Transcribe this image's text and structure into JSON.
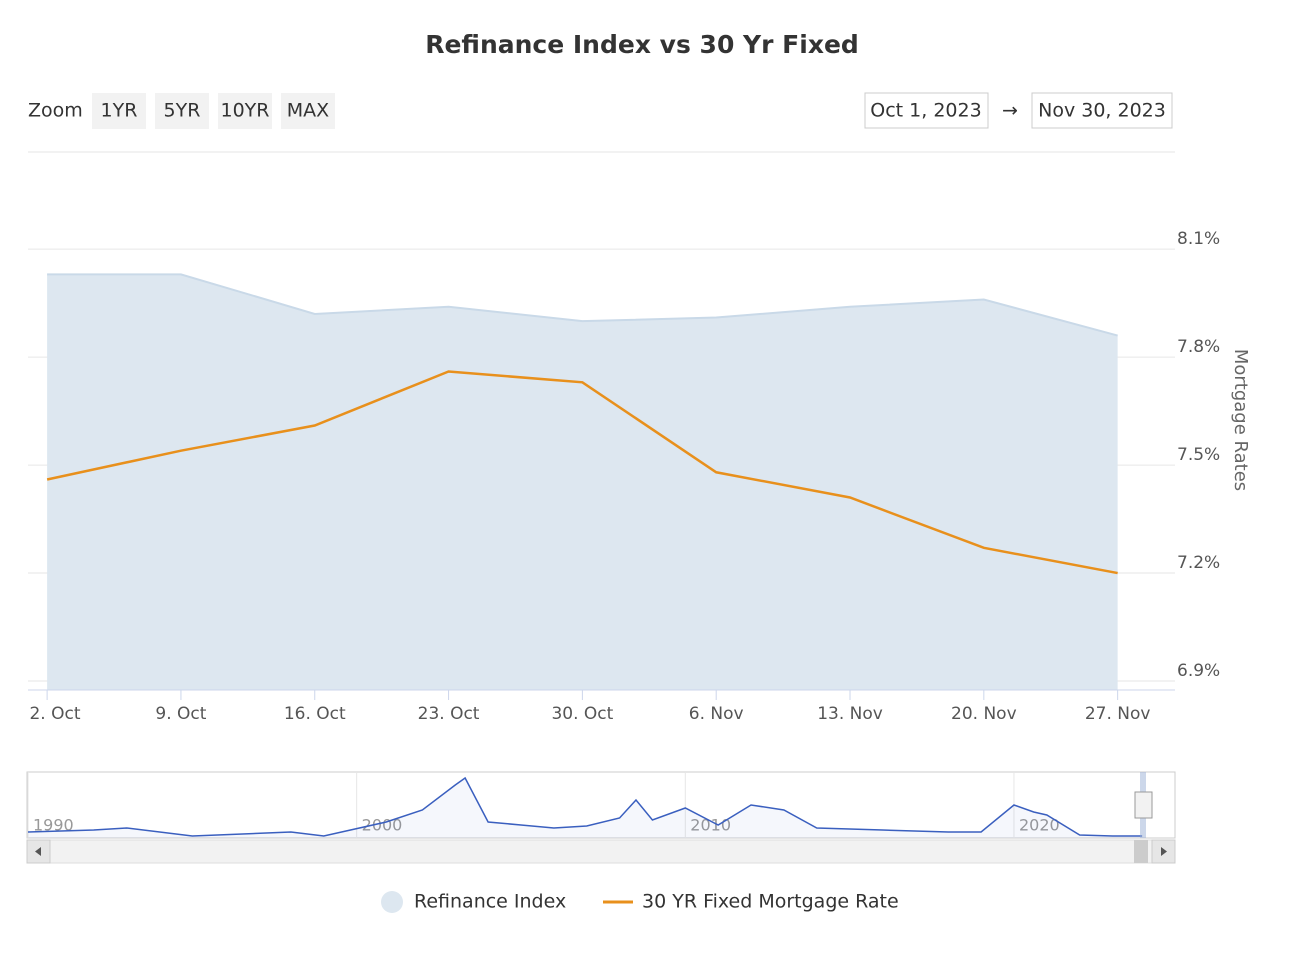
{
  "chart_data": {
    "type": "line",
    "title": "Refinance Index vs 30 Yr Fixed",
    "zoom_label": "Zoom",
    "zoom_buttons": [
      "1YR",
      "5YR",
      "10YR",
      "MAX"
    ],
    "date_from": "Oct 1, 2023",
    "date_arrow": "→",
    "date_to": "Nov 30, 2023",
    "y_axis_title": "Mortgage Rates",
    "x": [
      "2023-10-02",
      "2023-10-09",
      "2023-10-16",
      "2023-10-23",
      "2023-10-30",
      "2023-11-06",
      "2023-11-13",
      "2023-11-20",
      "2023-11-27"
    ],
    "xlim": [
      "2023-10-01",
      "2023-11-30"
    ],
    "xticks": [
      {
        "value": "2023-10-02",
        "label": "2. Oct"
      },
      {
        "value": "2023-10-09",
        "label": "9. Oct"
      },
      {
        "value": "2023-10-16",
        "label": "16. Oct"
      },
      {
        "value": "2023-10-23",
        "label": "23. Oct"
      },
      {
        "value": "2023-10-30",
        "label": "30. Oct"
      },
      {
        "value": "2023-11-06",
        "label": "6. Nov"
      },
      {
        "value": "2023-11-13",
        "label": "13. Nov"
      },
      {
        "value": "2023-11-20",
        "label": "20. Nov"
      },
      {
        "value": "2023-11-27",
        "label": "27. Nov"
      }
    ],
    "ylim": [
      6.875,
      8.37
    ],
    "yticks": [
      {
        "value": 6.9,
        "label": "6.9%"
      },
      {
        "value": 7.2,
        "label": "7.2%"
      },
      {
        "value": 7.5,
        "label": "7.5%"
      },
      {
        "value": 7.8,
        "label": "7.8%"
      },
      {
        "value": 8.1,
        "label": "8.1%"
      }
    ],
    "grid": true,
    "series": [
      {
        "name": "Refinance Index",
        "type": "area",
        "color": "#dde7f0",
        "line_color": "#c9d9e8",
        "values": [
          8.03,
          8.03,
          7.92,
          7.94,
          7.9,
          7.91,
          7.94,
          7.96,
          7.86
        ]
      },
      {
        "name": "30 YR Fixed Mortgage Rate",
        "type": "line",
        "color": "#e8901c",
        "values": [
          7.46,
          7.54,
          7.61,
          7.76,
          7.73,
          7.48,
          7.41,
          7.27,
          7.2
        ]
      }
    ],
    "legend": "bottom",
    "navigator": {
      "x": [
        1990,
        1992,
        1993,
        1995,
        1998,
        1999,
        2000.9,
        2002,
        2003,
        2003.3,
        2004,
        2005,
        2006,
        2007,
        2008,
        2008.5,
        2009,
        2010,
        2011,
        2012,
        2013,
        2014,
        2016,
        2018,
        2019,
        2020,
        2020.6,
        2021,
        2022,
        2023,
        2023.9
      ],
      "values": [
        6,
        8,
        10,
        2,
        6,
        2,
        16,
        28,
        53,
        60,
        16,
        13,
        10,
        12,
        20,
        38,
        18,
        30,
        13,
        33,
        28,
        10,
        8,
        6,
        6,
        33,
        26,
        23,
        3,
        2,
        2
      ],
      "xlim": [
        1990,
        2024.9
      ],
      "ylim": [
        0,
        66
      ],
      "xticks": [
        1990,
        2000,
        2010,
        2020
      ],
      "color": "#3a5fbf"
    }
  }
}
